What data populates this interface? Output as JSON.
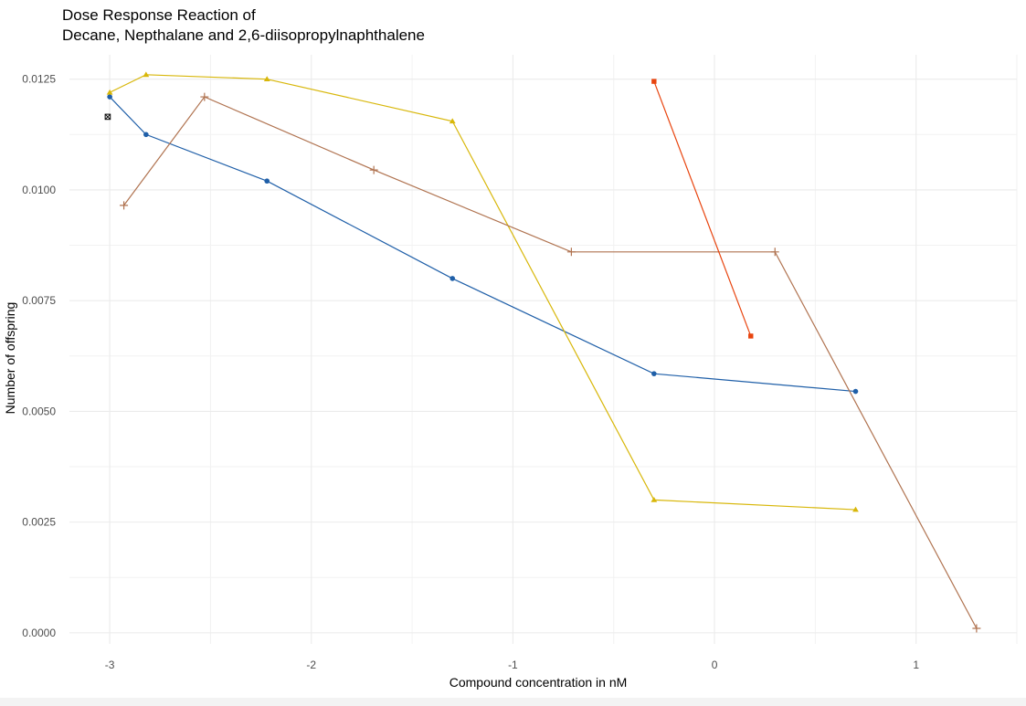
{
  "chart_data": {
    "type": "line",
    "title_lines": [
      "Dose Response Reaction of",
      "Decane, Nepthalane and 2,6-diisopropylnaphthalene"
    ],
    "xlabel": "Compound concentration in nM",
    "ylabel": "Number of offspring",
    "xlim": [
      -3.2,
      1.5
    ],
    "ylim": [
      -0.00025,
      0.01305
    ],
    "x_ticks": [
      -3,
      -2,
      -1,
      0,
      1
    ],
    "x_tick_labels": [
      "-3",
      "-2",
      "-1",
      "0",
      "1"
    ],
    "y_ticks": [
      0.0,
      0.0025,
      0.005,
      0.0075,
      0.01,
      0.0125
    ],
    "y_tick_labels": [
      "0.0000",
      "0.0025",
      "0.0050",
      "0.0075",
      "0.0100",
      "0.0125"
    ],
    "grid": true,
    "legend": "none",
    "series": [
      {
        "color": "#1f5fa8",
        "marker": "circle",
        "x": [
          -3.0,
          -2.82,
          -2.22,
          -1.3,
          -0.3,
          0.7
        ],
        "y": [
          0.0121,
          0.01125,
          0.0102,
          0.008,
          0.00585,
          0.00545
        ]
      },
      {
        "color": "#d8b70a",
        "marker": "triangle",
        "x": [
          -3.0,
          -2.82,
          -2.22,
          -1.3,
          -0.3,
          0.7
        ],
        "y": [
          0.0122,
          0.0126,
          0.0125,
          0.01155,
          0.003,
          0.00278
        ]
      },
      {
        "color": "#b07350",
        "marker": "plus",
        "x": [
          -2.93,
          -2.53,
          -1.69,
          -0.71,
          0.3,
          1.3
        ],
        "y": [
          0.00965,
          0.0121,
          0.01045,
          0.0086,
          0.0086,
          0.0001
        ]
      },
      {
        "color": "#e8440e",
        "marker": "square",
        "x": [
          -0.3,
          0.18
        ],
        "y": [
          0.01245,
          0.0067
        ]
      },
      {
        "color": "#000000",
        "marker": "boxed-x",
        "x": [
          -3.01
        ],
        "y": [
          0.01165
        ]
      }
    ]
  }
}
